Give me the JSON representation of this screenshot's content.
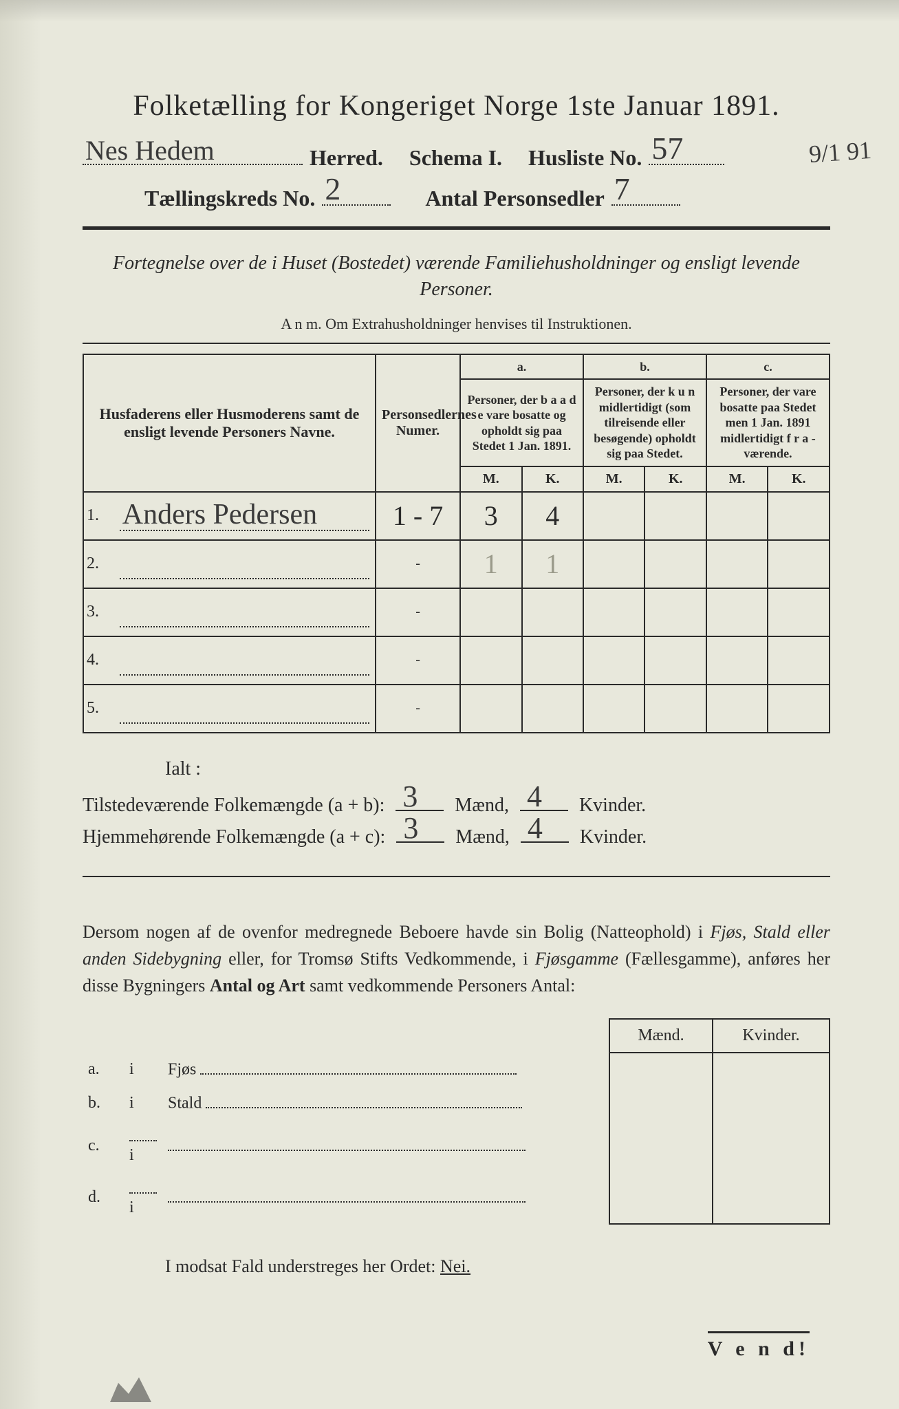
{
  "title": {
    "pre": "Folketælling for Kongeriget Norge 1ste Januar",
    "year": "1891."
  },
  "header": {
    "herred_value": "Nes Hedem",
    "herred_label": "Herred.",
    "schema_label": "Schema I.",
    "husliste_label": "Husliste No.",
    "husliste_value": "57",
    "kreds_label": "Tællingskreds No.",
    "kreds_value": "2",
    "antal_label": "Antal Personsedler",
    "antal_value": "7",
    "margin_date": "9/1 91"
  },
  "subtitle": "Fortegnelse over de i Huset (Bostedet) værende Familiehusholdninger og ensligt levende Personer.",
  "anm": "A n m.  Om Extrahusholdninger henvises til Instruktionen.",
  "table": {
    "columns": {
      "name_header": "Husfaderens eller Husmoderens samt de ensligt levende Personers Navne.",
      "numer_header": "Personsedlernes Numer.",
      "a_label": "a.",
      "a_text": "Personer, der b a a d e vare bosatte og opholdt sig paa Stedet 1 Jan. 1891.",
      "b_label": "b.",
      "b_text": "Personer, der k u n midlertidigt (som tilreisende eller besøgende) opholdt sig paa Stedet.",
      "c_label": "c.",
      "c_text": "Personer, der vare bosatte paa Stedet men 1 Jan. 1891 midlertidigt f r a - værende.",
      "m": "M.",
      "k": "K."
    },
    "rows": [
      {
        "num": "1.",
        "name": "Anders Pedersen",
        "numer": "1 - 7",
        "a_m": "3",
        "a_k": "4",
        "b_m": "",
        "b_k": "",
        "c_m": "",
        "c_k": ""
      },
      {
        "num": "2.",
        "name": "",
        "numer": "-",
        "a_m": "1",
        "a_k": "1",
        "a_faint": true,
        "b_m": "",
        "b_k": "",
        "c_m": "",
        "c_k": ""
      },
      {
        "num": "3.",
        "name": "",
        "numer": "-",
        "a_m": "",
        "a_k": "",
        "b_m": "",
        "b_k": "",
        "c_m": "",
        "c_k": ""
      },
      {
        "num": "4.",
        "name": "",
        "numer": "-",
        "a_m": "",
        "a_k": "",
        "b_m": "",
        "b_k": "",
        "c_m": "",
        "c_k": ""
      },
      {
        "num": "5.",
        "name": "",
        "numer": "-",
        "a_m": "",
        "a_k": "",
        "b_m": "",
        "b_k": "",
        "c_m": "",
        "c_k": ""
      }
    ]
  },
  "ialt": {
    "heading": "Ialt :",
    "row1_label": "Tilstedeværende Folkemængde (a + b):",
    "row2_label": "Hjemmehørende Folkemængde (a + c):",
    "maend": "Mænd,",
    "kvinder": "Kvinder.",
    "r1_m": "3",
    "r1_k": "4",
    "r2_m": "3",
    "r2_k": "4"
  },
  "paragraph": {
    "text1": "Dersom nogen af de ovenfor medregnede Beboere havde sin Bolig (Natteophold) i ",
    "it1": "Fjøs, Stald eller anden Sidebygning",
    "text2": " eller, for Tromsø Stifts Vedkommende, i ",
    "it2": "Fjøsgamme",
    "text3": " (Fællesgamme), anføres her disse Bygningers ",
    "b1": "Antal og Art",
    "text4": " samt vedkommende Personers Antal:"
  },
  "lower": {
    "maend": "Mænd.",
    "kvinder": "Kvinder.",
    "rows": [
      {
        "label_a": "a.",
        "label_i": "i",
        "what": "Fjøs"
      },
      {
        "label_a": "b.",
        "label_i": "i",
        "what": "Stald"
      },
      {
        "label_a": "c.",
        "label_i": "i",
        "what": ""
      },
      {
        "label_a": "d.",
        "label_i": "i",
        "what": ""
      }
    ]
  },
  "nei": {
    "pre": "I modsat Fald understreges her Ordet: ",
    "word": "Nei."
  },
  "vend": "V e n d!",
  "colors": {
    "paper": "#e8e8dc",
    "ink": "#2a2a2a",
    "handwriting": "#3a3a3a",
    "faint": "#9a9a8a"
  }
}
